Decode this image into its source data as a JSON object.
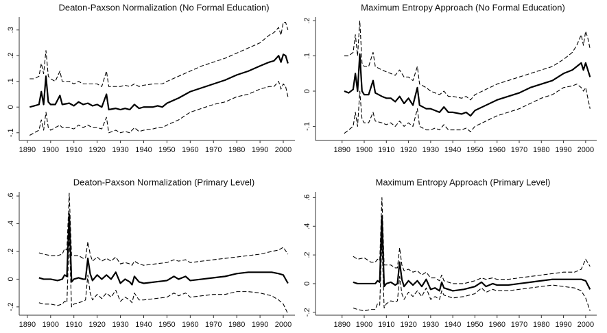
{
  "chart_data": [
    {
      "type": "line",
      "title": "Deaton-Paxson Normalization (No Formal Education)",
      "x": [
        1891,
        1893,
        1895,
        1896,
        1897,
        1898,
        1899,
        1900,
        1902,
        1904,
        1905,
        1908,
        1910,
        1912,
        1914,
        1916,
        1918,
        1920,
        1922,
        1924,
        1925,
        1928,
        1930,
        1932,
        1934,
        1936,
        1938,
        1940,
        1944,
        1946,
        1948,
        1950,
        1955,
        1960,
        1965,
        1970,
        1975,
        1980,
        1985,
        1990,
        1994,
        1996,
        1998,
        1999,
        2000,
        2001,
        2002
      ],
      "series": [
        {
          "color": "#000000",
          "dash": false,
          "width": 2.2,
          "values": [
            0,
            0.005,
            0.01,
            0.06,
            0.01,
            0.12,
            0.02,
            0.01,
            0.01,
            0.045,
            0.01,
            0.015,
            0.005,
            0.02,
            0.01,
            0.015,
            0.005,
            0.01,
            0,
            0.05,
            -0.01,
            -0.005,
            -0.01,
            -0.005,
            -0.01,
            0.01,
            -0.005,
            0,
            0,
            0.005,
            0,
            0.015,
            0.035,
            0.06,
            0.075,
            0.09,
            0.105,
            0.125,
            0.14,
            0.16,
            0.175,
            0.18,
            0.2,
            0.175,
            0.205,
            0.2,
            0.17
          ]
        },
        {
          "color": "#000000",
          "dash": true,
          "width": 1.1,
          "values": [
            0.11,
            0.11,
            0.12,
            0.17,
            0.13,
            0.22,
            0.12,
            0.11,
            0.1,
            0.14,
            0.1,
            0.1,
            0.09,
            0.1,
            0.09,
            0.09,
            0.09,
            0.09,
            0.08,
            0.14,
            0.08,
            0.08,
            0.08,
            0.085,
            0.08,
            0.09,
            0.08,
            0.085,
            0.09,
            0.09,
            0.09,
            0.1,
            0.12,
            0.14,
            0.16,
            0.175,
            0.19,
            0.21,
            0.23,
            0.25,
            0.28,
            0.29,
            0.31,
            0.28,
            0.33,
            0.33,
            0.3
          ]
        },
        {
          "color": "#000000",
          "dash": true,
          "width": 1.1,
          "values": [
            -0.11,
            -0.1,
            -0.09,
            -0.05,
            -0.09,
            -0.02,
            -0.08,
            -0.09,
            -0.08,
            -0.07,
            -0.08,
            -0.08,
            -0.085,
            -0.07,
            -0.08,
            -0.07,
            -0.08,
            -0.08,
            -0.085,
            -0.04,
            -0.1,
            -0.09,
            -0.1,
            -0.095,
            -0.1,
            -0.08,
            -0.095,
            -0.09,
            -0.085,
            -0.08,
            -0.08,
            -0.07,
            -0.05,
            -0.02,
            -0.005,
            0.01,
            0.02,
            0.04,
            0.05,
            0.07,
            0.08,
            0.08,
            0.1,
            0.07,
            0.09,
            0.08,
            0.04
          ]
        }
      ],
      "xlim": [
        1886.5,
        2005
      ],
      "xticks": [
        1890,
        1900,
        1910,
        1920,
        1930,
        1940,
        1950,
        1960,
        1970,
        1980,
        1990,
        2000
      ],
      "ylim": [
        -0.13,
        0.35
      ],
      "yticks": [
        {
          "value": -0.1,
          "label": "-.1"
        },
        0,
        {
          "value": 0.1,
          "label": ".1"
        },
        {
          "value": 0.2,
          "label": ".2"
        },
        {
          "value": 0.3,
          "label": ".3"
        }
      ]
    },
    {
      "type": "line",
      "title": "Maximum Entropy Approach (No Formal Education)",
      "x": [
        1891,
        1893,
        1895,
        1896,
        1897,
        1898,
        1899,
        1900,
        1902,
        1904,
        1905,
        1908,
        1910,
        1912,
        1914,
        1916,
        1918,
        1920,
        1922,
        1924,
        1925,
        1928,
        1930,
        1932,
        1934,
        1936,
        1938,
        1940,
        1944,
        1946,
        1948,
        1950,
        1955,
        1960,
        1965,
        1970,
        1975,
        1980,
        1985,
        1990,
        1994,
        1996,
        1998,
        1999,
        2000,
        2001,
        2002
      ],
      "series": [
        {
          "color": "#000000",
          "dash": false,
          "width": 2.2,
          "values": [
            0,
            -0.005,
            0.005,
            0.05,
            0,
            0.105,
            0,
            -0.01,
            -0.01,
            0.03,
            -0.005,
            -0.015,
            -0.02,
            -0.02,
            -0.03,
            -0.015,
            -0.035,
            -0.02,
            -0.04,
            0.01,
            -0.04,
            -0.05,
            -0.05,
            -0.055,
            -0.06,
            -0.045,
            -0.06,
            -0.06,
            -0.065,
            -0.06,
            -0.07,
            -0.055,
            -0.04,
            -0.025,
            -0.015,
            -0.005,
            0.01,
            0.02,
            0.03,
            0.05,
            0.06,
            0.07,
            0.08,
            0.06,
            0.08,
            0.06,
            0.04
          ]
        },
        {
          "color": "#000000",
          "dash": true,
          "width": 1.1,
          "values": [
            0.1,
            0.1,
            0.11,
            0.16,
            0.1,
            0.2,
            0.08,
            0.07,
            0.07,
            0.11,
            0.07,
            0.06,
            0.055,
            0.05,
            0.045,
            0.06,
            0.04,
            0.04,
            0.03,
            0.07,
            0.02,
            0.01,
            0,
            -0.005,
            -0.01,
            0,
            -0.015,
            -0.015,
            -0.02,
            -0.015,
            -0.025,
            -0.01,
            0.005,
            0.02,
            0.03,
            0.04,
            0.05,
            0.06,
            0.07,
            0.09,
            0.11,
            0.13,
            0.16,
            0.13,
            0.17,
            0.15,
            0.12
          ]
        },
        {
          "color": "#000000",
          "dash": true,
          "width": 1.1,
          "values": [
            -0.12,
            -0.11,
            -0.1,
            -0.06,
            -0.1,
            0,
            -0.08,
            -0.09,
            -0.09,
            -0.06,
            -0.085,
            -0.09,
            -0.095,
            -0.09,
            -0.1,
            -0.085,
            -0.1,
            -0.09,
            -0.1,
            -0.05,
            -0.1,
            -0.11,
            -0.11,
            -0.105,
            -0.11,
            -0.095,
            -0.11,
            -0.11,
            -0.11,
            -0.105,
            -0.115,
            -0.1,
            -0.085,
            -0.07,
            -0.06,
            -0.05,
            -0.035,
            -0.02,
            -0.01,
            0.01,
            0.015,
            0.02,
            0.01,
            0,
            0.01,
            -0.02,
            -0.05
          ]
        }
      ],
      "xlim": [
        1878,
        2005
      ],
      "xticks": [
        1890,
        1900,
        1910,
        1920,
        1930,
        1940,
        1950,
        1960,
        1970,
        1980,
        1990,
        2000
      ],
      "ylim": [
        -0.14,
        0.21
      ],
      "yticks": [
        {
          "value": -0.1,
          "label": "-.1"
        },
        0,
        {
          "value": 0.1,
          "label": ".1"
        },
        {
          "value": 0.2,
          "label": ".2"
        }
      ]
    },
    {
      "type": "line",
      "title": "Deaton-Paxson Normalization (Primary Level)",
      "x": [
        1895,
        1897,
        1900,
        1903,
        1905,
        1906,
        1907,
        1908,
        1909,
        1910,
        1912,
        1914,
        1915,
        1916,
        1917,
        1918,
        1920,
        1922,
        1924,
        1926,
        1928,
        1930,
        1932,
        1934,
        1935,
        1936,
        1938,
        1940,
        1945,
        1950,
        1953,
        1955,
        1958,
        1960,
        1965,
        1970,
        1975,
        1980,
        1985,
        1990,
        1995,
        1998,
        2000,
        2002
      ],
      "series": [
        {
          "color": "#000000",
          "dash": false,
          "width": 2.2,
          "values": [
            0.01,
            0,
            0,
            -0.01,
            0,
            0.03,
            0.02,
            0.47,
            -0.02,
            0,
            0.01,
            0,
            0,
            0.15,
            0.04,
            -0.01,
            0.03,
            0,
            0.03,
            0,
            0.05,
            -0.03,
            0,
            -0.02,
            -0.04,
            0.02,
            -0.02,
            -0.03,
            -0.02,
            -0.01,
            0.02,
            0,
            0.02,
            -0.01,
            0,
            0.01,
            0.02,
            0.04,
            0.05,
            0.05,
            0.05,
            0.04,
            0.03,
            -0.03
          ]
        },
        {
          "color": "#000000",
          "dash": true,
          "width": 1.1,
          "values": [
            0.19,
            0.18,
            0.17,
            0.17,
            0.18,
            0.22,
            0.21,
            0.62,
            0.17,
            0.17,
            0.17,
            0.15,
            0.15,
            0.27,
            0.18,
            0.13,
            0.16,
            0.13,
            0.15,
            0.13,
            0.16,
            0.11,
            0.12,
            0.11,
            0.1,
            0.13,
            0.11,
            0.1,
            0.11,
            0.12,
            0.14,
            0.13,
            0.14,
            0.12,
            0.13,
            0.14,
            0.15,
            0.16,
            0.17,
            0.18,
            0.2,
            0.21,
            0.23,
            0.18
          ]
        },
        {
          "color": "#000000",
          "dash": true,
          "width": 1.1,
          "values": [
            -0.17,
            -0.18,
            -0.18,
            -0.19,
            -0.18,
            -0.16,
            -0.17,
            0.32,
            -0.2,
            -0.18,
            -0.17,
            -0.16,
            -0.15,
            0.03,
            -0.1,
            -0.15,
            -0.11,
            -0.14,
            -0.1,
            -0.13,
            -0.08,
            -0.16,
            -0.13,
            -0.15,
            -0.17,
            -0.1,
            -0.15,
            -0.15,
            -0.14,
            -0.13,
            -0.1,
            -0.12,
            -0.1,
            -0.13,
            -0.12,
            -0.11,
            -0.11,
            -0.09,
            -0.09,
            -0.1,
            -0.12,
            -0.15,
            -0.18,
            -0.25
          ]
        }
      ],
      "xlim": [
        1886.5,
        2005
      ],
      "xticks": [
        1890,
        1900,
        1910,
        1920,
        1930,
        1940,
        1950,
        1960,
        1970,
        1980,
        1990,
        2000
      ],
      "ylim": [
        -0.26,
        0.63
      ],
      "yticks": [
        {
          "value": -0.2,
          "label": "-.2"
        },
        0,
        {
          "value": 0.2,
          "label": ".2"
        },
        {
          "value": 0.4,
          "label": ".4"
        },
        {
          "value": 0.6,
          "label": ".6"
        }
      ]
    },
    {
      "type": "line",
      "title": "Maximum Entropy Approach (Primary Level)",
      "x": [
        1895,
        1897,
        1900,
        1903,
        1905,
        1906,
        1907,
        1908,
        1909,
        1910,
        1912,
        1914,
        1915,
        1916,
        1917,
        1918,
        1920,
        1922,
        1924,
        1926,
        1928,
        1930,
        1932,
        1934,
        1935,
        1936,
        1938,
        1940,
        1945,
        1950,
        1953,
        1955,
        1958,
        1960,
        1965,
        1970,
        1975,
        1980,
        1985,
        1990,
        1995,
        1998,
        2000,
        2002
      ],
      "series": [
        {
          "color": "#000000",
          "dash": false,
          "width": 2.2,
          "values": [
            0.01,
            0,
            0,
            0,
            0,
            0.02,
            0.01,
            0.47,
            -0.02,
            0,
            0.01,
            -0.01,
            0,
            0.15,
            0.03,
            -0.02,
            0.02,
            -0.01,
            0.02,
            -0.02,
            0.03,
            -0.04,
            -0.03,
            -0.05,
            0.01,
            -0.03,
            -0.04,
            -0.05,
            -0.04,
            -0.02,
            0.01,
            -0.02,
            0,
            -0.01,
            -0.01,
            0,
            0.01,
            0.02,
            0.03,
            0.03,
            0.03,
            0.03,
            0.02,
            -0.04
          ]
        },
        {
          "color": "#000000",
          "dash": true,
          "width": 1.1,
          "values": [
            0.19,
            0.17,
            0.18,
            0.15,
            0.15,
            0.17,
            0.16,
            0.6,
            0.13,
            0.13,
            0.13,
            0.11,
            0.11,
            0.25,
            0.13,
            0.09,
            0.1,
            0.08,
            0.09,
            0.06,
            0.08,
            0.04,
            0.04,
            0.02,
            0.06,
            0.02,
            0.01,
            0,
            0,
            0.02,
            0.04,
            0.03,
            0.04,
            0.03,
            0.03,
            0.04,
            0.05,
            0.06,
            0.07,
            0.08,
            0.08,
            0.1,
            0.17,
            0.12
          ]
        },
        {
          "color": "#000000",
          "dash": true,
          "width": 1.1,
          "values": [
            -0.17,
            -0.18,
            -0.19,
            -0.18,
            -0.18,
            -0.14,
            -0.15,
            0.3,
            -0.17,
            -0.14,
            -0.12,
            -0.13,
            -0.12,
            0.05,
            -0.07,
            -0.11,
            -0.06,
            -0.09,
            -0.05,
            -0.09,
            -0.03,
            -0.11,
            -0.09,
            -0.11,
            -0.05,
            -0.08,
            -0.09,
            -0.1,
            -0.09,
            -0.07,
            -0.03,
            -0.06,
            -0.04,
            -0.05,
            -0.05,
            -0.04,
            -0.03,
            -0.02,
            -0.01,
            -0.02,
            -0.03,
            -0.05,
            -0.1,
            -0.19
          ]
        }
      ],
      "xlim": [
        1878,
        2005
      ],
      "xticks": [
        1890,
        1900,
        1910,
        1920,
        1930,
        1940,
        1950,
        1960,
        1970,
        1980,
        1990,
        2000
      ],
      "ylim": [
        -0.22,
        0.64
      ],
      "yticks": [
        {
          "value": -0.2,
          "label": "-.2"
        },
        0,
        {
          "value": 0.2,
          "label": ".2"
        },
        {
          "value": 0.4,
          "label": ".4"
        },
        {
          "value": 0.6,
          "label": ".6"
        }
      ]
    }
  ]
}
